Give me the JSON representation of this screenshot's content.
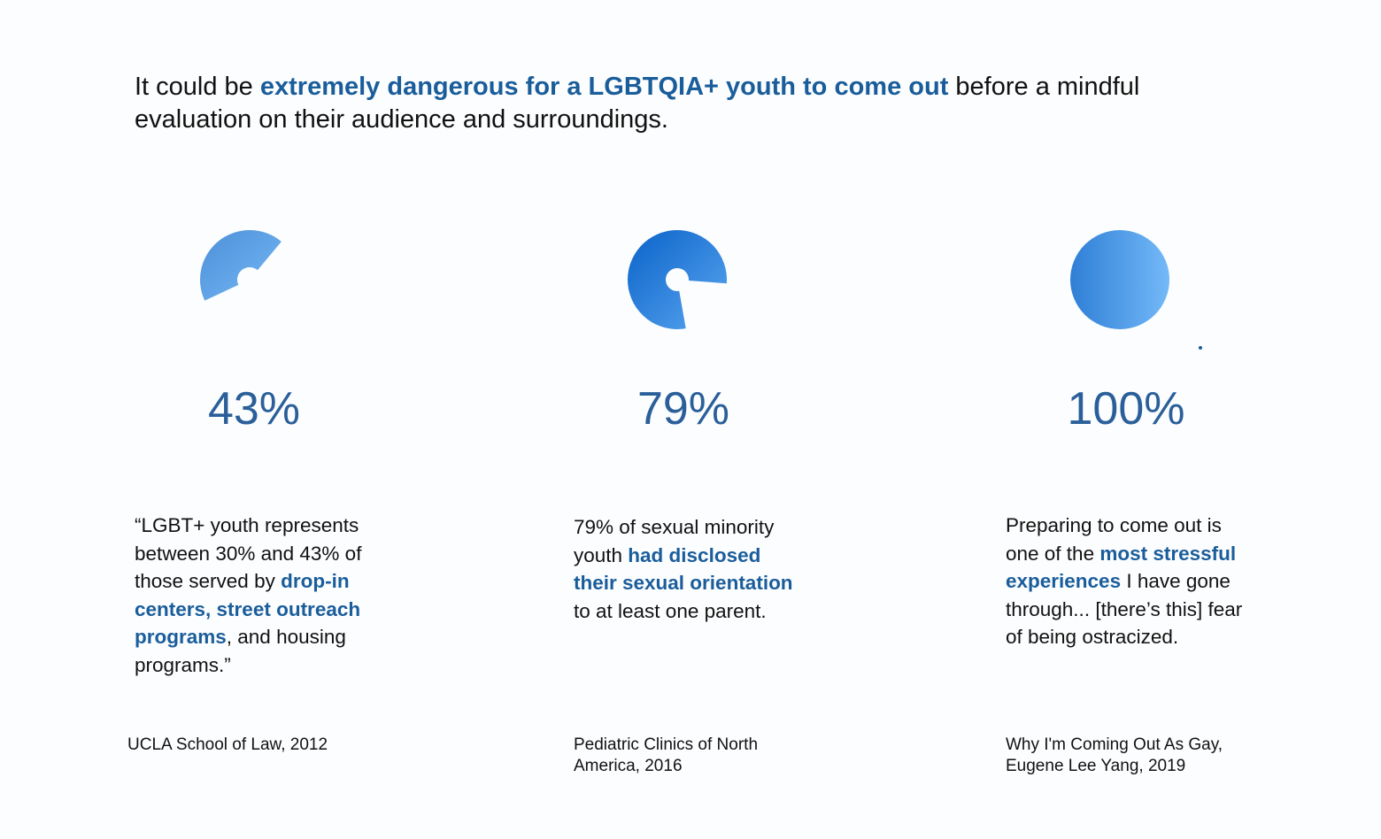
{
  "headline": {
    "pre": "It could be ",
    "highlight": "extremely dangerous for a LGBTQIA+ youth to come out",
    "post": " before a mindful evaluation on their audience and surroundings."
  },
  "colors": {
    "highlight": "#1a5d9b",
    "gradient_dark": "#0a63c9",
    "gradient_light": "#74b9f8"
  },
  "chart_data": [
    {
      "type": "pie",
      "title": "43%",
      "value": 43,
      "max": 100,
      "label": "43%"
    },
    {
      "type": "pie",
      "title": "79%",
      "value": 79,
      "max": 100,
      "label": "79%"
    },
    {
      "type": "pie",
      "title": "100%",
      "value": 100,
      "max": 100,
      "label": "100%"
    }
  ],
  "cards": [
    {
      "percent": "43%",
      "quote_parts": [
        {
          "text": "“LGBT+ youth represents between 30% and 43% of those served by ",
          "bold": false
        },
        {
          "text": "drop-in centers, street outreach programs",
          "bold": true
        },
        {
          "text": ", and housing programs.”",
          "bold": false
        }
      ],
      "source": "UCLA School of Law, 2012"
    },
    {
      "percent": "79%",
      "quote_parts": [
        {
          "text": "79% of sexual minority youth ",
          "bold": false
        },
        {
          "text": "had disclosed their sexual orientation",
          "bold": true
        },
        {
          "text": " to at least one parent.",
          "bold": false
        }
      ],
      "source": "Pediatric Clinics of North America, 2016"
    },
    {
      "percent": "100%",
      "quote_parts": [
        {
          "text": "Preparing to come out is one of the ",
          "bold": false
        },
        {
          "text": "most stressful experiences",
          "bold": true
        },
        {
          "text": " I have gone through... [there’s this] fear of being ostracized.",
          "bold": false
        }
      ],
      "source": "Why I'm Coming Out As Gay, Eugene Lee Yang, 2019"
    }
  ]
}
